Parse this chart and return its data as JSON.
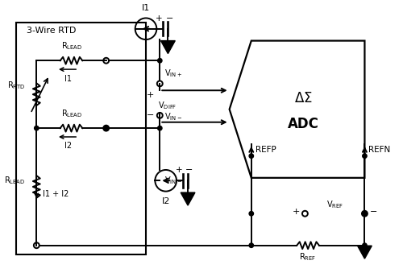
{
  "bg_color": "#ffffff",
  "line_color": "#000000",
  "figsize": [
    5.0,
    3.39
  ],
  "dpi": 100,
  "xlim": [
    0,
    10
  ],
  "ylim": [
    0,
    6.78
  ]
}
